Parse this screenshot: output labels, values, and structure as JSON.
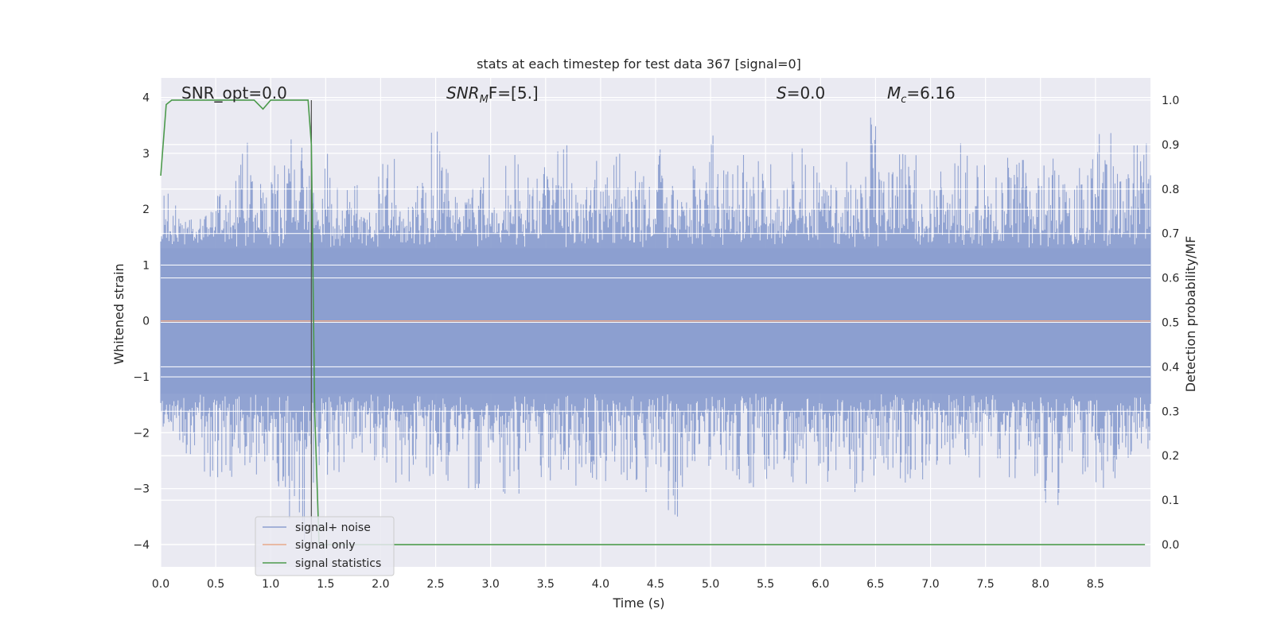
{
  "chart_data": {
    "type": "line",
    "title": "stats at each timestep for test data 367 [signal=0]",
    "xlabel": "Time (s)",
    "ylabel": "Whitened strain",
    "y2label": "Detection probability/MF",
    "xlim": [
      0.0,
      9.0
    ],
    "ylim": [
      -4.4,
      4.35
    ],
    "y2lim": [
      -0.05,
      1.05
    ],
    "xticks": [
      "0.0",
      "0.5",
      "1.0",
      "1.5",
      "2.0",
      "2.5",
      "3.0",
      "3.5",
      "4.0",
      "4.5",
      "5.0",
      "5.5",
      "6.0",
      "6.5",
      "7.0",
      "7.5",
      "8.0",
      "8.5"
    ],
    "yticks": [
      "4",
      "3",
      "2",
      "1",
      "0",
      "−1",
      "−2",
      "−3",
      "−4"
    ],
    "y2ticks": [
      "1.0",
      "0.9",
      "0.8",
      "0.7",
      "0.6",
      "0.5",
      "0.4",
      "0.3",
      "0.2",
      "0.1",
      "0.0"
    ],
    "grid": true,
    "legend_position": "lower-left",
    "annotations": {
      "snr_opt": "SNR_opt=0.0",
      "snr_mf_main": "SNR",
      "snr_mf_sub": "M",
      "snr_mf_rest": "F=[5.]",
      "s_main": "S",
      "s_rest": "=0.0",
      "mc_main": "M",
      "mc_sub": "c",
      "mc_rest": "=6.16"
    },
    "vertical_marker_x": 1.37,
    "series": [
      {
        "name": "signal+ noise",
        "axis": "left",
        "color": "#8c9fd0",
        "description_of_values": "whitened strain noise, sampled",
        "envelope_upper": [
          2.3,
          2.1,
          2.0,
          2.6,
          3.2,
          2.5,
          2.8,
          3.4,
          2.6,
          3.0,
          2.5,
          2.2,
          2.9,
          2.1,
          2.6,
          3.4,
          2.4,
          2.7,
          3.0,
          3.1,
          2.6,
          2.8,
          3.3,
          2.6,
          2.9,
          3.0,
          2.7,
          3.1,
          2.5,
          2.8,
          3.4,
          2.7,
          3.0,
          2.9,
          2.6,
          3.3,
          2.8,
          2.6,
          2.9,
          3.7,
          2.8,
          3.1,
          2.6,
          2.9,
          3.2,
          2.8,
          2.7,
          3.0,
          2.8,
          3.6,
          2.5,
          2.9,
          3.4,
          2.7,
          3.2
        ],
        "envelope_lower": [
          -2.2,
          -2.5,
          -2.8,
          -2.9,
          -2.6,
          -2.8,
          -3.0,
          -4.0,
          -2.9,
          -3.0,
          -2.7,
          -3.0,
          -2.6,
          -2.9,
          -2.8,
          -2.9,
          -2.7,
          -3.3,
          -2.6,
          -3.1,
          -2.8,
          -2.9,
          -2.7,
          -3.0,
          -2.9,
          -3.2,
          -3.1,
          -2.8,
          -3.6,
          -2.7,
          -2.9,
          -2.8,
          -3.0,
          -2.9,
          -2.7,
          -3.0,
          -2.6,
          -2.9,
          -3.1,
          -2.8,
          -2.7,
          -2.9,
          -3.0,
          -2.6,
          -2.8,
          -2.9,
          -2.7,
          -3.0,
          -2.8,
          -3.3,
          -2.6,
          -2.9,
          -3.0,
          -2.7,
          -2.4
        ]
      },
      {
        "name": "signal only",
        "axis": "left",
        "color": "#e8a98a",
        "x": [
          0.0,
          9.0
        ],
        "values": [
          0.0,
          0.0
        ]
      },
      {
        "name": "signal statistics",
        "axis": "right",
        "color": "#4c9a4c",
        "x": [
          0.0,
          0.05,
          0.1,
          0.3,
          0.5,
          0.85,
          0.93,
          1.0,
          1.3,
          1.34,
          1.37,
          1.4,
          1.44,
          1.5,
          2.0,
          3.0,
          4.0,
          5.0,
          6.0,
          7.0,
          8.0,
          8.95
        ],
        "values": [
          0.83,
          0.99,
          1.0,
          1.0,
          1.0,
          1.0,
          0.98,
          1.0,
          1.0,
          1.0,
          0.9,
          0.3,
          0.0,
          0.0,
          0.0,
          0.0,
          0.0,
          0.0,
          0.0,
          0.0,
          0.0,
          0.0
        ]
      }
    ]
  }
}
